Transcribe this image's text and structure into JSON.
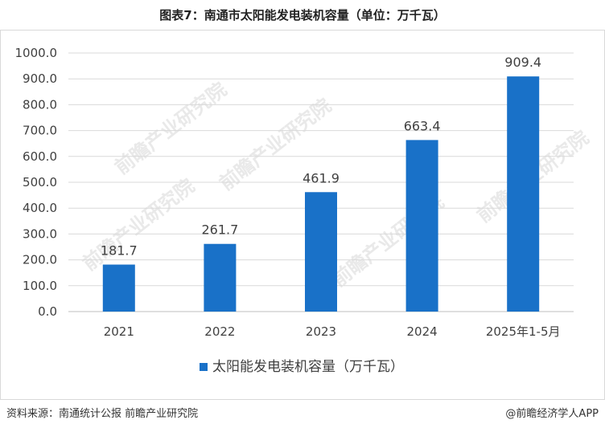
{
  "title": "图表7：南通市太阳能发电装机容量（单位：万千瓦）",
  "footer": {
    "source": "资料来源：南通统计公报 前瞻产业研究院",
    "brand": "@前瞻经济学人APP"
  },
  "colors": {
    "bar": "#1971C8",
    "grid": "#d9d9d9",
    "axis": "#bfbfbf"
  },
  "chart_data": {
    "type": "bar",
    "categories": [
      "2021",
      "2022",
      "2023",
      "2024",
      "2025年1-5月"
    ],
    "series": [
      {
        "name": "太阳能发电装机容量（万千瓦）",
        "values": [
          181.7,
          261.7,
          461.9,
          663.4,
          909.4
        ]
      }
    ],
    "data_labels": [
      "181.7",
      "261.7",
      "461.9",
      "663.4",
      "909.4"
    ],
    "ylim": [
      0,
      1000
    ],
    "y_ticks": [
      "0.0",
      "100.0",
      "200.0",
      "300.0",
      "400.0",
      "500.0",
      "600.0",
      "700.0",
      "800.0",
      "900.0",
      "1000.0"
    ],
    "grid": true,
    "legend_position": "bottom"
  }
}
